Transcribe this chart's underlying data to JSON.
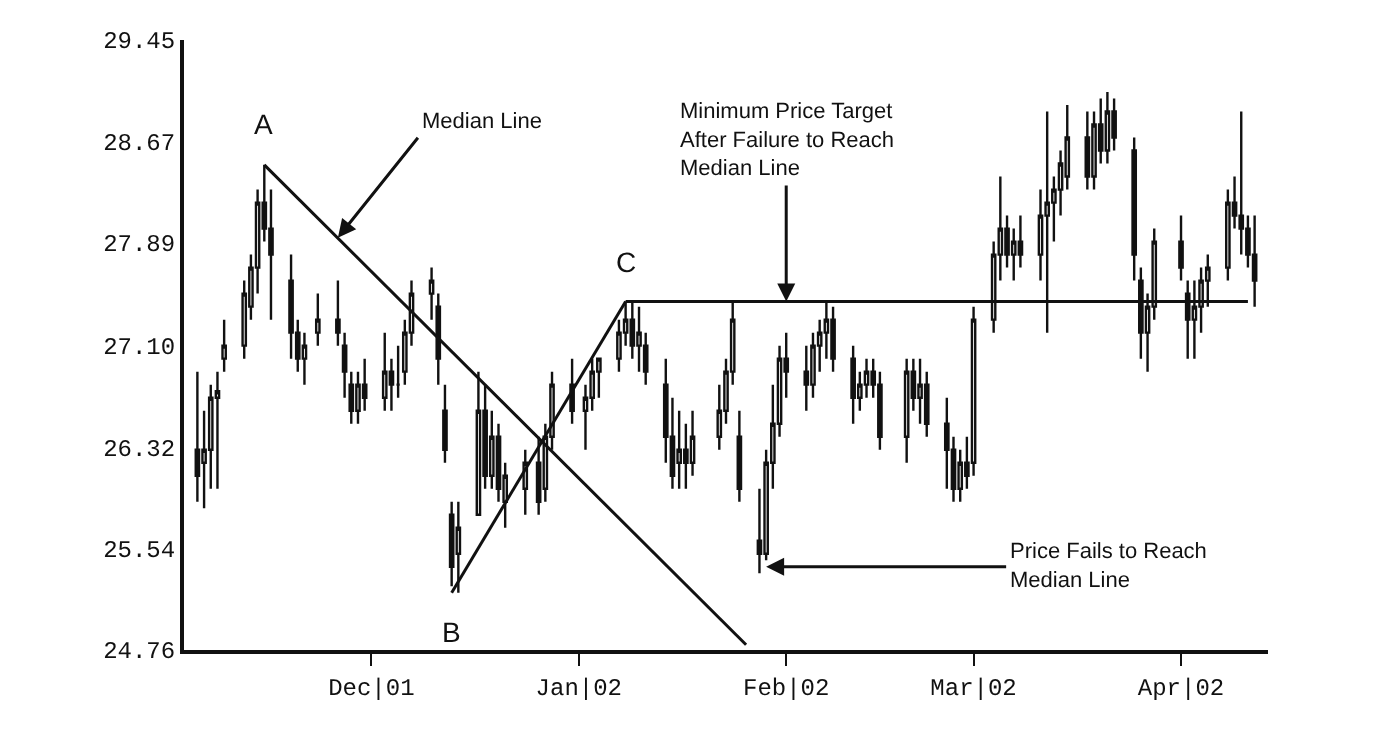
{
  "chart_data": {
    "type": "candlestick",
    "x": [
      "2001-11-05",
      "2001-11-06",
      "2001-11-07",
      "2001-11-08",
      "2001-11-09",
      "2001-11-12",
      "2001-11-13",
      "2001-11-14",
      "2001-11-15",
      "2001-11-16",
      "2001-11-19",
      "2001-11-20",
      "2001-11-21",
      "2001-11-23",
      "2001-11-26",
      "2001-11-27",
      "2001-11-28",
      "2001-11-29",
      "2001-11-30",
      "2001-12-03",
      "2001-12-04",
      "2001-12-05",
      "2001-12-06",
      "2001-12-07",
      "2001-12-10",
      "2001-12-11",
      "2001-12-12",
      "2001-12-13",
      "2001-12-14",
      "2001-12-17",
      "2001-12-18",
      "2001-12-19",
      "2001-12-20",
      "2001-12-21",
      "2001-12-24",
      "2001-12-26",
      "2001-12-27",
      "2001-12-28",
      "2001-12-31",
      "2002-01-02",
      "2002-01-03",
      "2002-01-04",
      "2002-01-07",
      "2002-01-08",
      "2002-01-09",
      "2002-01-10",
      "2002-01-11",
      "2002-01-14",
      "2002-01-15",
      "2002-01-16",
      "2002-01-17",
      "2002-01-18",
      "2002-01-22",
      "2002-01-23",
      "2002-01-24",
      "2002-01-25",
      "2002-01-28",
      "2002-01-29",
      "2002-01-30",
      "2002-01-31",
      "2002-02-01",
      "2002-02-04",
      "2002-02-05",
      "2002-02-06",
      "2002-02-07",
      "2002-02-08",
      "2002-02-11",
      "2002-02-12",
      "2002-02-13",
      "2002-02-14",
      "2002-02-15",
      "2002-02-19",
      "2002-02-20",
      "2002-02-21",
      "2002-02-22",
      "2002-02-25",
      "2002-02-26",
      "2002-02-27",
      "2002-02-28",
      "2002-03-01",
      "2002-03-04",
      "2002-03-05",
      "2002-03-06",
      "2002-03-07",
      "2002-03-08",
      "2002-03-11",
      "2002-03-12",
      "2002-03-13",
      "2002-03-14",
      "2002-03-15",
      "2002-03-18",
      "2002-03-19",
      "2002-03-20",
      "2002-03-21",
      "2002-03-22",
      "2002-03-25",
      "2002-03-26",
      "2002-03-27",
      "2002-03-28",
      "2002-04-01",
      "2002-04-02",
      "2002-04-03",
      "2002-04-04",
      "2002-04-05",
      "2002-04-08",
      "2002-04-09",
      "2002-04-10",
      "2002-04-11",
      "2002-04-12"
    ],
    "ohlc": [
      [
        26.3,
        26.9,
        25.9,
        26.1
      ],
      [
        26.2,
        26.6,
        25.85,
        26.3
      ],
      [
        26.3,
        26.8,
        26.0,
        26.7
      ],
      [
        26.7,
        26.9,
        26.0,
        26.75
      ],
      [
        27.0,
        27.3,
        26.9,
        27.1
      ],
      [
        27.1,
        27.6,
        27.0,
        27.5
      ],
      [
        27.4,
        27.8,
        27.3,
        27.7
      ],
      [
        27.7,
        28.3,
        27.5,
        28.2
      ],
      [
        28.2,
        28.49,
        27.9,
        28.0
      ],
      [
        28.0,
        28.3,
        27.3,
        27.8
      ],
      [
        27.6,
        27.8,
        27.0,
        27.2
      ],
      [
        27.2,
        27.3,
        26.9,
        27.0
      ],
      [
        27.0,
        27.2,
        26.8,
        27.1
      ],
      [
        27.2,
        27.5,
        27.1,
        27.3
      ],
      [
        27.3,
        27.6,
        27.1,
        27.2
      ],
      [
        27.1,
        27.2,
        26.7,
        26.9
      ],
      [
        26.8,
        26.9,
        26.5,
        26.6
      ],
      [
        26.6,
        26.9,
        26.5,
        26.8
      ],
      [
        26.8,
        27.0,
        26.6,
        26.7
      ],
      [
        26.7,
        27.2,
        26.6,
        26.9
      ],
      [
        26.9,
        27.0,
        26.6,
        26.8
      ],
      [
        26.8,
        27.1,
        26.7,
        26.8
      ],
      [
        26.9,
        27.3,
        26.8,
        27.2
      ],
      [
        27.2,
        27.6,
        27.1,
        27.5
      ],
      [
        27.5,
        27.7,
        27.3,
        27.6
      ],
      [
        27.4,
        27.5,
        26.8,
        27.0
      ],
      [
        26.6,
        26.8,
        26.2,
        26.3
      ],
      [
        25.8,
        25.9,
        25.25,
        25.4
      ],
      [
        25.5,
        25.9,
        25.2,
        25.7
      ],
      [
        25.8,
        26.9,
        25.8,
        26.6
      ],
      [
        26.6,
        26.8,
        26.0,
        26.1
      ],
      [
        26.1,
        26.6,
        26.0,
        26.4
      ],
      [
        26.4,
        26.5,
        25.9,
        26.0
      ],
      [
        25.9,
        26.2,
        25.7,
        26.1
      ],
      [
        26.0,
        26.3,
        25.8,
        26.2
      ],
      [
        26.2,
        26.4,
        25.8,
        25.9
      ],
      [
        26.0,
        26.5,
        25.9,
        26.4
      ],
      [
        26.4,
        26.9,
        26.3,
        26.8
      ],
      [
        26.8,
        27.0,
        26.5,
        26.6
      ],
      [
        26.6,
        26.8,
        26.3,
        26.7
      ],
      [
        26.7,
        27.0,
        26.6,
        26.9
      ],
      [
        26.9,
        27.0,
        26.7,
        27.0
      ],
      [
        27.0,
        27.3,
        26.9,
        27.2
      ],
      [
        27.2,
        27.44,
        27.1,
        27.3
      ],
      [
        27.3,
        27.44,
        27.0,
        27.1
      ],
      [
        27.1,
        27.4,
        26.9,
        27.2
      ],
      [
        27.1,
        27.2,
        26.8,
        26.9
      ],
      [
        26.8,
        27.0,
        26.2,
        26.4
      ],
      [
        26.4,
        26.7,
        26.0,
        26.1
      ],
      [
        26.2,
        26.6,
        26.0,
        26.3
      ],
      [
        26.3,
        26.5,
        26.0,
        26.2
      ],
      [
        26.2,
        26.6,
        26.1,
        26.4
      ],
      [
        26.4,
        26.8,
        26.3,
        26.6
      ],
      [
        26.6,
        27.0,
        26.5,
        26.9
      ],
      [
        26.9,
        27.44,
        26.8,
        27.3
      ],
      [
        26.4,
        26.6,
        25.9,
        26.0
      ],
      [
        25.6,
        26.0,
        25.35,
        25.5
      ],
      [
        25.5,
        26.3,
        25.45,
        26.2
      ],
      [
        26.2,
        26.8,
        26.0,
        26.5
      ],
      [
        26.5,
        27.1,
        26.4,
        27.0
      ],
      [
        27.0,
        27.2,
        26.7,
        26.9
      ],
      [
        26.9,
        27.1,
        26.6,
        26.8
      ],
      [
        26.8,
        27.2,
        26.7,
        27.1
      ],
      [
        27.1,
        27.3,
        26.9,
        27.2
      ],
      [
        27.2,
        27.44,
        27.0,
        27.3
      ],
      [
        27.3,
        27.4,
        26.9,
        27.0
      ],
      [
        27.0,
        27.1,
        26.5,
        26.7
      ],
      [
        26.7,
        26.9,
        26.6,
        26.8
      ],
      [
        26.8,
        27.0,
        26.7,
        26.9
      ],
      [
        26.9,
        27.0,
        26.7,
        26.8
      ],
      [
        26.8,
        26.9,
        26.3,
        26.4
      ],
      [
        26.4,
        27.0,
        26.2,
        26.9
      ],
      [
        26.9,
        27.0,
        26.6,
        26.7
      ],
      [
        26.7,
        27.0,
        26.5,
        26.8
      ],
      [
        26.8,
        26.9,
        26.4,
        26.5
      ],
      [
        26.5,
        26.7,
        26.0,
        26.3
      ],
      [
        26.3,
        26.4,
        25.9,
        26.0
      ],
      [
        26.0,
        26.3,
        25.9,
        26.2
      ],
      [
        26.2,
        26.4,
        26.0,
        26.1
      ],
      [
        26.2,
        27.4,
        26.1,
        27.3
      ],
      [
        27.3,
        27.9,
        27.2,
        27.8
      ],
      [
        27.8,
        28.4,
        27.6,
        28.0
      ],
      [
        28.0,
        28.1,
        27.7,
        27.8
      ],
      [
        27.8,
        28.0,
        27.6,
        27.9
      ],
      [
        27.9,
        28.1,
        27.7,
        27.8
      ],
      [
        27.8,
        28.3,
        27.6,
        28.1
      ],
      [
        28.1,
        28.9,
        27.2,
        28.2
      ],
      [
        28.2,
        28.4,
        27.9,
        28.3
      ],
      [
        28.3,
        28.6,
        28.1,
        28.5
      ],
      [
        28.4,
        28.95,
        28.3,
        28.7
      ],
      [
        28.7,
        28.9,
        28.3,
        28.4
      ],
      [
        28.4,
        28.9,
        28.3,
        28.8
      ],
      [
        28.8,
        29.0,
        28.5,
        28.6
      ],
      [
        28.6,
        29.05,
        28.5,
        28.9
      ],
      [
        28.9,
        29.0,
        28.6,
        28.7
      ],
      [
        28.6,
        28.7,
        27.6,
        27.8
      ],
      [
        27.6,
        27.7,
        27.0,
        27.2
      ],
      [
        27.2,
        27.5,
        26.9,
        27.4
      ],
      [
        27.4,
        28.0,
        27.3,
        27.9
      ],
      [
        27.9,
        28.1,
        27.6,
        27.7
      ],
      [
        27.5,
        27.6,
        27.0,
        27.3
      ],
      [
        27.3,
        27.6,
        27.0,
        27.4
      ],
      [
        27.4,
        27.7,
        27.2,
        27.6
      ],
      [
        27.6,
        27.8,
        27.4,
        27.7
      ],
      [
        27.7,
        28.3,
        27.6,
        28.2
      ],
      [
        28.2,
        28.4,
        28.0,
        28.1
      ],
      [
        28.1,
        28.9,
        27.8,
        28.0
      ],
      [
        28.0,
        28.1,
        27.7,
        27.8
      ],
      [
        27.8,
        28.1,
        27.4,
        27.6
      ]
    ],
    "color": "#111111",
    "series": [
      {
        "type": "line",
        "color": "#111111",
        "x": [
          "2001-11-15",
          "2002-01-26"
        ],
        "values": [
          28.49,
          24.8
        ]
      },
      {
        "type": "line",
        "color": "#111111",
        "x": [
          "2001-12-13",
          "2002-01-08"
        ],
        "values": [
          25.2,
          27.44
        ]
      },
      {
        "type": "line",
        "color": "#111111",
        "x": [
          "2002-01-08",
          "2002-04-11"
        ],
        "values": [
          27.44,
          27.44
        ]
      }
    ],
    "xlim": [
      "2001-11-03",
      "2002-04-14"
    ],
    "xticks": [
      {
        "value": "2001-12-01",
        "label": "Dec|01"
      },
      {
        "value": "2002-01-01",
        "label": "Jan|02"
      },
      {
        "value": "2002-02-01",
        "label": "Feb|02"
      },
      {
        "value": "2002-03-01",
        "label": "Mar|02"
      },
      {
        "value": "2002-04-01",
        "label": "Apr|02"
      }
    ],
    "ylim": [
      24.76,
      29.45
    ],
    "yticks": [
      24.76,
      25.54,
      26.32,
      {
        "value": 27.1,
        "label": "27.10"
      },
      27.89,
      28.67,
      29.45
    ],
    "grid": false,
    "annotations": [
      {
        "text": "A",
        "x": "2001-11-15",
        "y": 28.49
      },
      {
        "text": "B",
        "x": "2001-12-13",
        "y": 25.2
      },
      {
        "text": "C",
        "x": "2002-01-08",
        "y": 27.44
      },
      {
        "text": "Median Line",
        "x": "2001-11-26",
        "y": 27.93
      },
      {
        "text": "Minimum Price Target\nAfter Failure to Reach\nMedian Line",
        "x": "2002-02-01",
        "y": 27.44
      },
      {
        "text": "Price Fails to Reach\nMedian Line",
        "x": "2002-01-29",
        "y": 25.4
      }
    ]
  }
}
